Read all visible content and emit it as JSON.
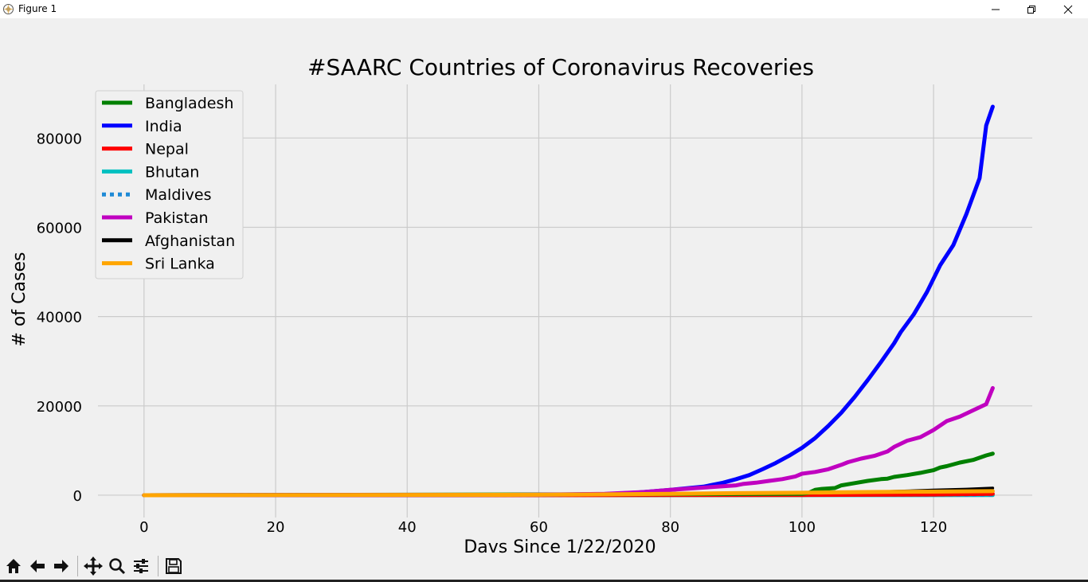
{
  "window": {
    "title": "Figure 1",
    "controls": [
      "minimize",
      "restore",
      "close"
    ]
  },
  "toolbar": {
    "buttons": [
      {
        "name": "home-icon",
        "tooltip": "Home"
      },
      {
        "name": "back-arrow-icon",
        "tooltip": "Back"
      },
      {
        "name": "forward-arrow-icon",
        "tooltip": "Forward"
      },
      {
        "name": "pan-icon",
        "tooltip": "Pan"
      },
      {
        "name": "zoom-icon",
        "tooltip": "Zoom"
      },
      {
        "name": "configure-subplots-icon",
        "tooltip": "Configure subplots"
      },
      {
        "name": "save-icon",
        "tooltip": "Save"
      }
    ]
  },
  "chart_data": {
    "type": "line",
    "title": "#SAARC Countries of Coronavirus Recoveries",
    "xlabel": "Davs Since 1/22/2020",
    "ylabel": "# of Cases",
    "xlim": [
      -7,
      135
    ],
    "ylim": [
      -5000,
      92000
    ],
    "xticks": [
      0,
      20,
      40,
      60,
      80,
      100,
      120
    ],
    "yticks": [
      0,
      20000,
      40000,
      60000,
      80000
    ],
    "grid": true,
    "legend_position": "top-left",
    "series": [
      {
        "name": "Bangladesh",
        "color": "#008000",
        "style": "solid",
        "x": [
          0,
          100,
          101,
          102,
          103,
          105,
          106,
          108,
          110,
          112,
          113,
          114,
          116,
          118,
          119,
          120,
          121,
          122,
          124,
          126,
          128,
          129
        ],
        "y": [
          0,
          300,
          500,
          1200,
          1400,
          1600,
          2200,
          2700,
          3200,
          3600,
          3700,
          4100,
          4500,
          5000,
          5300,
          5600,
          6200,
          6500,
          7300,
          7900,
          8900,
          9300
        ]
      },
      {
        "name": "India",
        "color": "#0000ff",
        "style": "solid",
        "x": [
          0,
          60,
          70,
          75,
          80,
          85,
          88,
          90,
          92,
          94,
          96,
          98,
          100,
          102,
          104,
          106,
          108,
          110,
          112,
          114,
          115,
          117,
          119,
          121,
          123,
          125,
          127,
          128,
          129
        ],
        "y": [
          0,
          100,
          250,
          600,
          1200,
          1900,
          2800,
          3600,
          4500,
          5800,
          7200,
          8800,
          10600,
          12800,
          15500,
          18500,
          22000,
          25800,
          29800,
          34000,
          36500,
          40500,
          45500,
          51500,
          56000,
          63000,
          71000,
          82800,
          87000
        ]
      },
      {
        "name": "Nepal",
        "color": "#ff0000",
        "style": "solid",
        "x": [
          0,
          80,
          100,
          120,
          129
        ],
        "y": [
          0,
          20,
          50,
          150,
          300
        ]
      },
      {
        "name": "Bhutan",
        "color": "#00c0c0",
        "style": "solid",
        "x": [
          0,
          129
        ],
        "y": [
          0,
          20
        ]
      },
      {
        "name": "Maldives",
        "color": "#1f8ad6",
        "style": "dotted",
        "x": [
          0,
          129
        ],
        "y": [
          0,
          100
        ]
      },
      {
        "name": "Pakistan",
        "color": "#c000c0",
        "style": "solid",
        "x": [
          0,
          60,
          70,
          76,
          80,
          84,
          86,
          88,
          90,
          91,
          93,
          95,
          97,
          99,
          100,
          102,
          104,
          106,
          107,
          109,
          111,
          113,
          114,
          116,
          118,
          120,
          122,
          124,
          126,
          128,
          129
        ],
        "y": [
          0,
          100,
          300,
          700,
          1200,
          1600,
          1800,
          2000,
          2200,
          2500,
          2800,
          3200,
          3600,
          4200,
          4800,
          5200,
          5800,
          6800,
          7400,
          8200,
          8800,
          9800,
          10800,
          12200,
          13000,
          14600,
          16600,
          17600,
          19000,
          20400,
          24000
        ]
      },
      {
        "name": "Afghanistan",
        "color": "#000000",
        "style": "solid",
        "x": [
          0,
          60,
          80,
          90,
          100,
          105,
          110,
          115,
          120,
          125,
          129
        ],
        "y": [
          0,
          50,
          200,
          300,
          400,
          550,
          700,
          900,
          1150,
          1350,
          1600
        ]
      },
      {
        "name": "Sri Lanka",
        "color": "#ffa500",
        "style": "solid",
        "x": [
          0,
          60,
          80,
          90,
          100,
          110,
          120,
          129
        ],
        "y": [
          0,
          100,
          300,
          450,
          550,
          700,
          800,
          900
        ]
      }
    ]
  }
}
